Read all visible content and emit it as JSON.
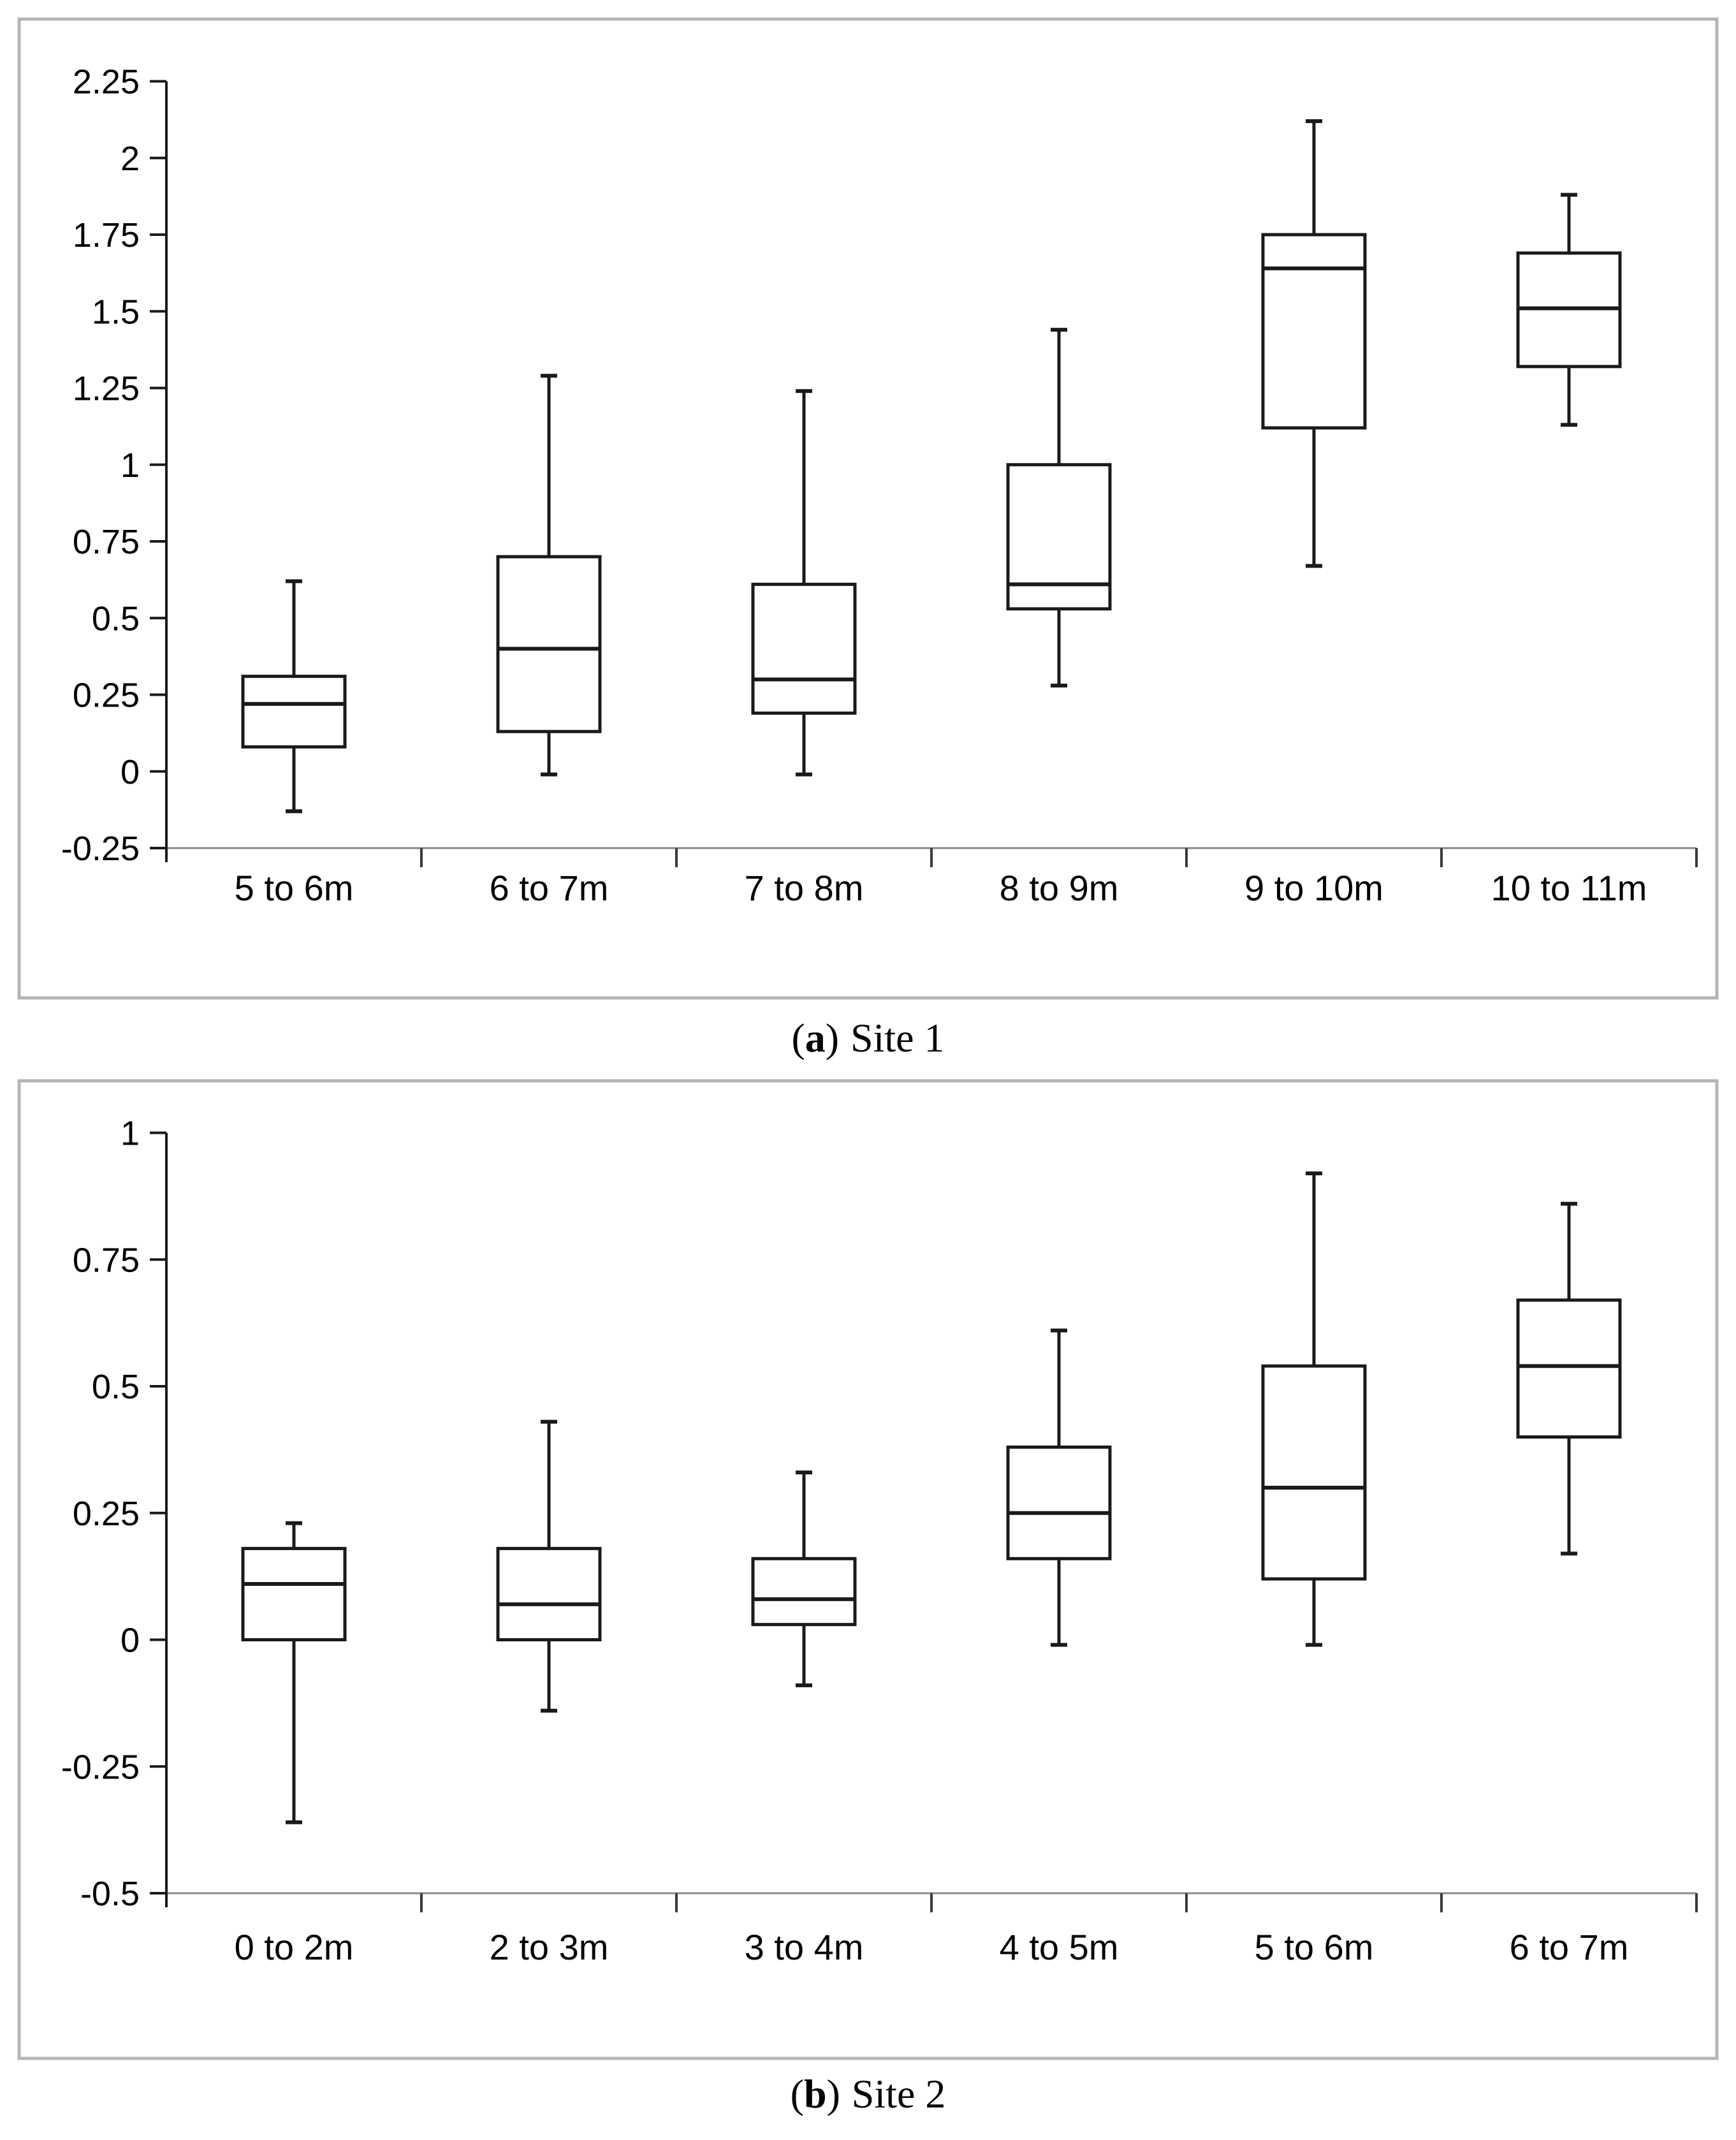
{
  "figure": {
    "captions": {
      "a": {
        "open": "(",
        "letter": "a",
        "close": ")",
        "title": "Site 1"
      },
      "b": {
        "open": "(",
        "letter": "b",
        "close": ")",
        "title": "Site 2"
      }
    }
  },
  "colors": {
    "box_line": "#1a1a1a",
    "axis_line": "#1a1a1a",
    "baseline": "#8a8a8a",
    "boundary_tick": "#3a3a3a",
    "frame_border": "#b5b5b5",
    "background": "#ffffff",
    "text": "#000000"
  },
  "chart_data": [
    {
      "id": "site1",
      "type": "box",
      "panel_label": "(a) Site 1",
      "xlabel": "",
      "ylabel": "",
      "ylim": [
        -0.25,
        2.25
      ],
      "y_tick_step": 0.25,
      "y_ticks": [
        "2.25",
        "2",
        "1.75",
        "1.5",
        "1.25",
        "1",
        "0.75",
        "0.5",
        "0.25",
        "0",
        "-0.25"
      ],
      "grid": false,
      "legend": "none",
      "categories": [
        "5 to 6m",
        "6 to 7m",
        "7 to 8m",
        "8 to 9m",
        "9 to 10m",
        "10 to 11m"
      ],
      "boxes": [
        {
          "category": "5 to 6m",
          "low": -0.13,
          "q1": 0.08,
          "median": 0.22,
          "q3": 0.31,
          "high": 0.62
        },
        {
          "category": "6 to 7m",
          "low": -0.01,
          "q1": 0.13,
          "median": 0.4,
          "q3": 0.7,
          "high": 1.29
        },
        {
          "category": "7 to 8m",
          "low": -0.01,
          "q1": 0.19,
          "median": 0.3,
          "q3": 0.61,
          "high": 1.24
        },
        {
          "category": "8 to 9m",
          "low": 0.28,
          "q1": 0.53,
          "median": 0.61,
          "q3": 1.0,
          "high": 1.44
        },
        {
          "category": "9 to 10m",
          "low": 0.67,
          "q1": 1.12,
          "median": 1.64,
          "q3": 1.75,
          "high": 2.12
        },
        {
          "category": "10 to 11m",
          "low": 1.13,
          "q1": 1.32,
          "median": 1.51,
          "q3": 1.69,
          "high": 1.88
        }
      ]
    },
    {
      "id": "site2",
      "type": "box",
      "panel_label": "(b) Site 2",
      "xlabel": "",
      "ylabel": "",
      "ylim": [
        -0.5,
        1.0
      ],
      "y_tick_step": 0.25,
      "y_ticks": [
        "1",
        "0.75",
        "0.5",
        "0.25",
        "0",
        "-0.25",
        "-0.5"
      ],
      "grid": false,
      "legend": "none",
      "categories": [
        "0 to 2m",
        "2 to 3m",
        "3 to 4m",
        "4 to 5m",
        "5 to 6m",
        "6 to 7m"
      ],
      "boxes": [
        {
          "category": "0 to 2m",
          "low": -0.36,
          "q1": 0.0,
          "median": 0.11,
          "q3": 0.18,
          "high": 0.23
        },
        {
          "category": "2 to 3m",
          "low": -0.14,
          "q1": 0.0,
          "median": 0.07,
          "q3": 0.18,
          "high": 0.43
        },
        {
          "category": "3 to 4m",
          "low": -0.09,
          "q1": 0.03,
          "median": 0.08,
          "q3": 0.16,
          "high": 0.33
        },
        {
          "category": "4 to 5m",
          "low": -0.01,
          "q1": 0.16,
          "median": 0.25,
          "q3": 0.38,
          "high": 0.61
        },
        {
          "category": "5 to 6m",
          "low": -0.01,
          "q1": 0.12,
          "median": 0.3,
          "q3": 0.54,
          "high": 0.92
        },
        {
          "category": "6 to 7m",
          "low": 0.17,
          "q1": 0.4,
          "median": 0.54,
          "q3": 0.67,
          "high": 0.86
        }
      ]
    }
  ]
}
